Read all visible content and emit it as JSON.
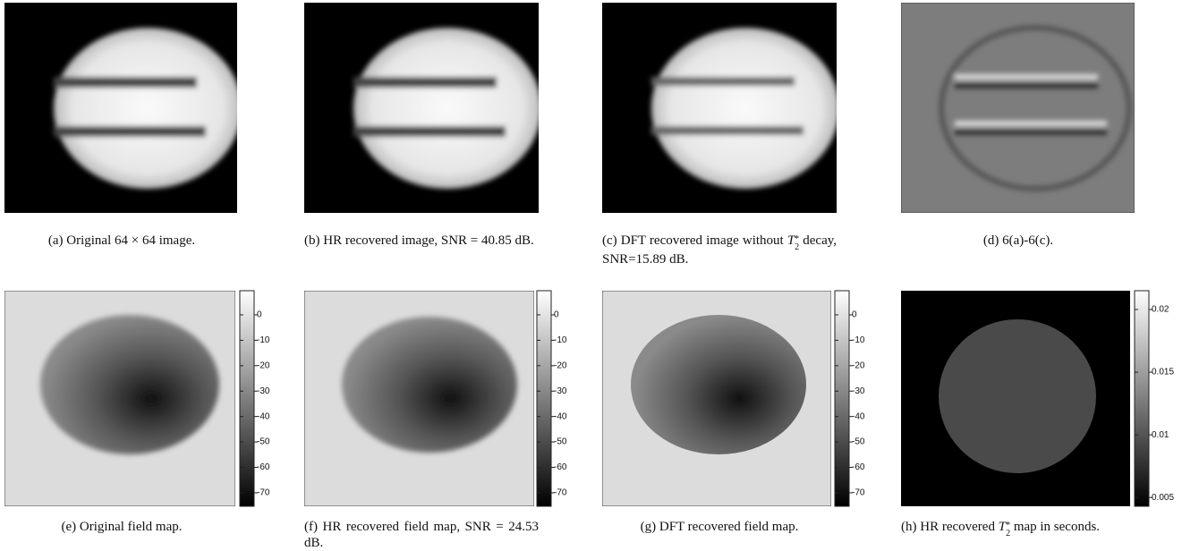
{
  "panels": [
    {
      "caption": {
        "label": "(a)",
        "text": "Original 64 × 64 image."
      }
    },
    {
      "caption": {
        "label": "(b)",
        "text": "HR recovered image, SNR = 40.85 dB."
      }
    },
    {
      "caption": {
        "label": "(c)",
        "text": "DFT recovered image without",
        "var": "T",
        "sub": "2",
        "sup": "*",
        "text2": "decay, SNR=15.89 dB."
      }
    },
    {
      "caption": {
        "label": "(d)",
        "text": "6(a)-6(c)."
      }
    },
    {
      "caption": {
        "label": "(e)",
        "text": "Original field map."
      },
      "colorbar": {
        "lim": [
          -75.3,
          9.5
        ],
        "ticks": [
          0,
          -10,
          -20,
          -30,
          -40,
          -50,
          -60,
          -70
        ]
      }
    },
    {
      "caption": {
        "label": "(f)",
        "text": "HR recovered field map, SNR = 24.53 dB."
      },
      "colorbar": {
        "lim": [
          -75.3,
          9.5
        ],
        "ticks": [
          0,
          -10,
          -20,
          -30,
          -40,
          -50,
          -60,
          -70
        ]
      }
    },
    {
      "caption": {
        "label": "(g)",
        "text": "DFT recovered field map."
      },
      "colorbar": {
        "lim": [
          -75.3,
          9.5
        ],
        "ticks": [
          0,
          -10,
          -20,
          -30,
          -40,
          -50,
          -60,
          -70
        ]
      }
    },
    {
      "caption": {
        "label": "(h)",
        "text": "HR recovered",
        "var": "T",
        "sub": "2",
        "sup": "*",
        "text2": "map in seconds."
      },
      "colorbar": {
        "lim": [
          0.0043,
          0.0215
        ],
        "ticks": [
          0.02,
          0.015,
          0.01,
          0.005
        ]
      }
    }
  ]
}
